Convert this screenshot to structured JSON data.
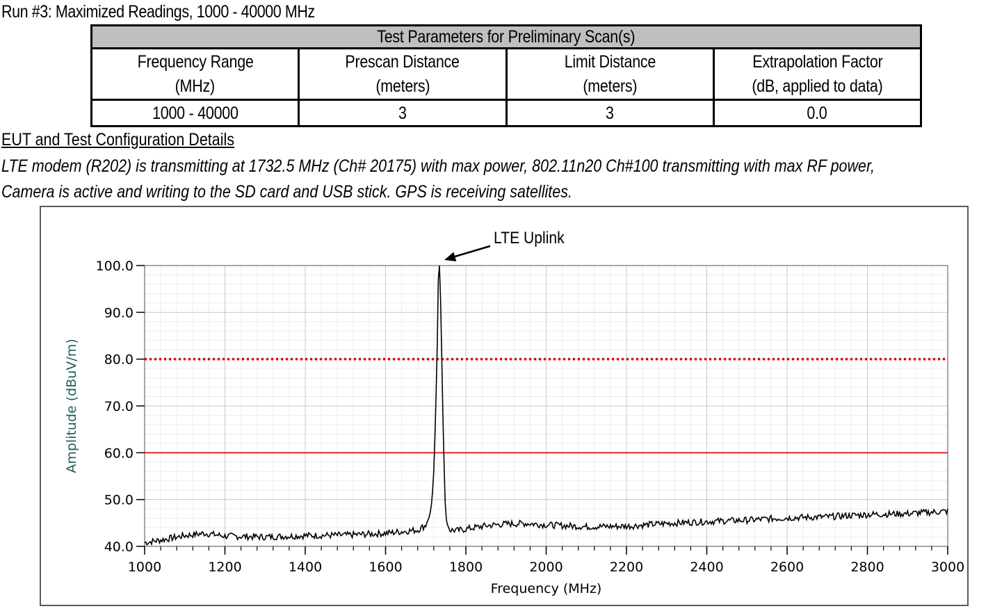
{
  "run_title": "Run #3:  Maximized Readings, 1000 - 40000 MHz",
  "params_table": {
    "title": "Test Parameters for Preliminary Scan(s)",
    "headers": [
      {
        "line1": "Frequency Range",
        "line2": "(MHz)"
      },
      {
        "line1": "Prescan Distance",
        "line2": "(meters)"
      },
      {
        "line1": "Limit Distance",
        "line2": "(meters)"
      },
      {
        "line1": "Extrapolation Factor",
        "line2": "(dB, applied to data)"
      }
    ],
    "values": [
      "1000 - 40000",
      "3",
      "3",
      "0.0"
    ]
  },
  "eut": {
    "title": "EUT and Test Configuration Details ",
    "line1": "LTE modem (R202) is transmitting at  1732.5 MHz (Ch# 20175) with max power, 802.11n20 Ch#100 transmitting with max RF power,",
    "line2": "Camera is active and writing to the SD card and USB stick. GPS is receiving satellites."
  },
  "colors": {
    "trace": "#000000",
    "limit_solid": "#e02020",
    "limit_dotted": "#e00000",
    "ylabel": "#1f5f5f",
    "grid_major": "#c8c8c8",
    "grid_minor": "#ececec"
  },
  "chart_data": {
    "type": "line",
    "annotation": "LTE Uplink",
    "annotation_target": {
      "x": 1732.5,
      "y": 100.0
    },
    "xlabel": "Frequency (MHz)",
    "ylabel": "Amplitude (dBuV/m)",
    "xlim": [
      1000,
      3000
    ],
    "ylim": [
      40,
      100
    ],
    "x_ticks": [
      "1000",
      "1200",
      "1400",
      "1600",
      "1800",
      "2000",
      "2200",
      "2400",
      "2600",
      "2800",
      "3000"
    ],
    "y_ticks": [
      "100.0",
      "90.0",
      "80.0",
      "70.0",
      "60.0",
      "50.0",
      "40.0"
    ],
    "grid": true,
    "limit_lines": [
      {
        "style": "dotted",
        "value": 80
      },
      {
        "style": "solid",
        "value": 60
      }
    ],
    "series": [
      {
        "x": [
          1000,
          1050,
          1100,
          1150,
          1200,
          1300,
          1400,
          1500,
          1600,
          1680,
          1700,
          1710,
          1716,
          1720,
          1724,
          1728,
          1730,
          1732,
          1733,
          1735,
          1737,
          1740,
          1744,
          1748,
          1752,
          1760,
          1780,
          1800,
          1850,
          1900,
          1950,
          2000,
          2100,
          2200,
          2300,
          2400,
          2500,
          2600,
          2700,
          2800,
          2900,
          3000
        ],
        "y": [
          40.8,
          41.5,
          42.3,
          42.8,
          42.2,
          42.0,
          42.3,
          42.4,
          42.8,
          43.5,
          44.5,
          46.5,
          50.0,
          56.0,
          66.0,
          80.0,
          90.0,
          100.0,
          100.0,
          100.0,
          93.0,
          80.0,
          63.0,
          50.0,
          45.0,
          43.5,
          43.4,
          43.7,
          44.4,
          44.8,
          44.9,
          44.6,
          44.2,
          44.3,
          44.9,
          45.3,
          45.6,
          46.1,
          46.3,
          46.8,
          47.0,
          47.5
        ]
      }
    ]
  }
}
